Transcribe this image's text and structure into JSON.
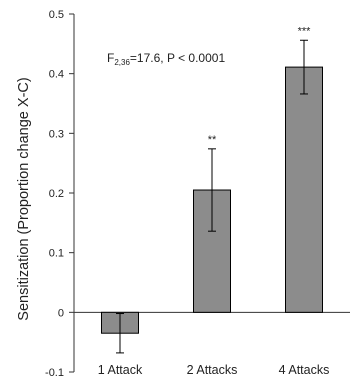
{
  "chart_data": {
    "type": "bar",
    "title": "",
    "xlabel": "",
    "ylabel": "Sensitization (Proportion change X-C)",
    "categories": [
      "1 Attack",
      "2 Attacks",
      "4 Attacks"
    ],
    "values": [
      -0.035,
      0.205,
      0.411
    ],
    "error": [
      0.033,
      0.069,
      0.045
    ],
    "significance": [
      "",
      "**",
      "***"
    ],
    "ylim": [
      -0.1,
      0.5
    ],
    "yticks": [
      -0.1,
      0,
      0.1,
      0.2,
      0.3,
      0.4,
      0.5
    ],
    "ytick_labels": [
      "-0.1",
      "0",
      "0.1",
      "0.2",
      "0.3",
      "0.4",
      "0.5"
    ],
    "grid": false,
    "annotation": {
      "prefix": "F",
      "subscript": "2,36",
      "text": "=17.6, P < 0.0001"
    },
    "colors": {
      "bar_fill": "#8c8c8c",
      "bar_stroke": "#000000",
      "axis": "#333333"
    }
  }
}
